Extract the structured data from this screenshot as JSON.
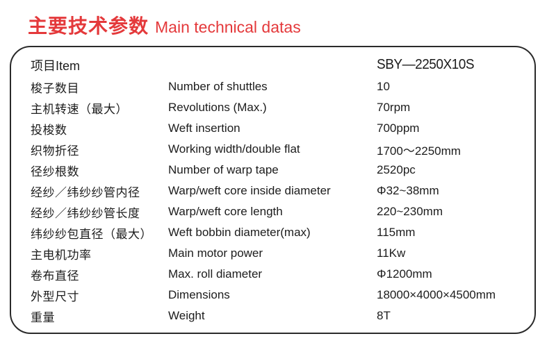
{
  "title": {
    "zh": "主要技术参数",
    "en": "Main technical datas"
  },
  "table": {
    "header": {
      "item_label": "项目Item",
      "model": "SBY—2250X10S"
    },
    "rows": [
      {
        "zh": "梭子数目",
        "en": "Number of shuttles",
        "value": "10"
      },
      {
        "zh": "主机转速（最大）",
        "en": "Revolutions (Max.)",
        "value": "70rpm"
      },
      {
        "zh": "投梭数",
        "en": "Weft insertion",
        "value": "700ppm"
      },
      {
        "zh": "织物折径",
        "en": "Working width/double flat",
        "value": "1700～2250mm"
      },
      {
        "zh": "径纱根数",
        "en": "Number of warp tape",
        "value": "2520pc"
      },
      {
        "zh": "经纱／纬纱纱管内径",
        "en": "Warp/weft core inside diameter",
        "value": "Φ32~38mm"
      },
      {
        "zh": "经纱／纬纱纱管长度",
        "en": "Warp/weft core length",
        "value": "220~230mm"
      },
      {
        "zh": "纬纱纱包直径（最大）",
        "en": "Weft bobbin diameter(max)",
        "value": "115mm"
      },
      {
        "zh": "主电机功率",
        "en": "Main motor power",
        "value": "11Kw"
      },
      {
        "zh": "卷布直径",
        "en": "Max. roll diameter",
        "value": "Φ1200mm"
      },
      {
        "zh": "外型尺寸",
        "en": "Dimensions",
        "value": "18000×4000×4500mm"
      },
      {
        "zh": "重量",
        "en": "Weight",
        "value": "8T"
      }
    ]
  },
  "colors": {
    "accent_red": "#e4393b",
    "border": "#2a2a2a",
    "text": "#1c1c1c"
  }
}
